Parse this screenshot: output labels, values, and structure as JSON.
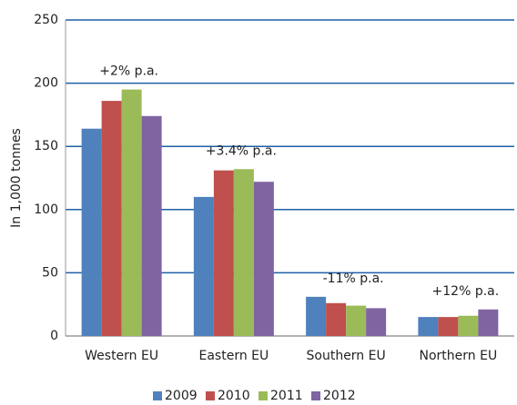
{
  "chart_data": {
    "type": "bar",
    "y_label": "In 1,000 tonnes",
    "categories": [
      "Western EU",
      "Eastern EU",
      "Southern EU",
      "Northern EU"
    ],
    "series": [
      {
        "name": "2009",
        "color": "#4f81bd",
        "values": [
          164,
          110,
          31,
          15
        ]
      },
      {
        "name": "2010",
        "color": "#c0504d",
        "values": [
          186,
          131,
          26,
          15
        ]
      },
      {
        "name": "2011",
        "color": "#9bbb59",
        "values": [
          195,
          132,
          24,
          16
        ]
      },
      {
        "name": "2012",
        "color": "#8064a2",
        "values": [
          174,
          122,
          22,
          21
        ]
      }
    ],
    "annotations": [
      "+2% p.a.",
      "+3.4% p.a.",
      "-11% p.a.",
      "+12% p.a."
    ],
    "ylim": [
      0,
      250
    ],
    "yticks": [
      0,
      50,
      100,
      150,
      200,
      250
    ],
    "grid": true,
    "legend": "bottom"
  }
}
